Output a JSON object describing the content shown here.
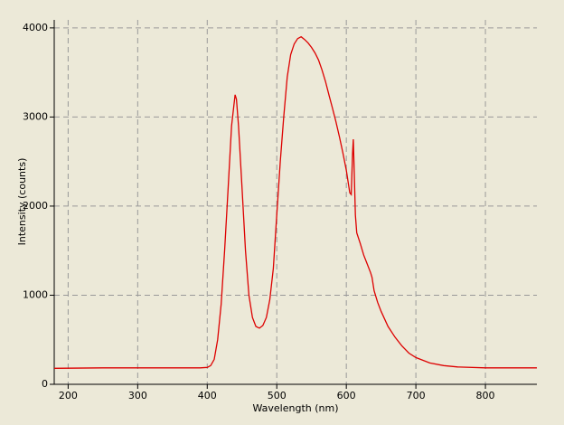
{
  "chart_data": {
    "type": "line",
    "x_label": "Wavelength (nm)",
    "y_label": "Intensity (counts)",
    "xlim": [
      180,
      874
    ],
    "ylim": [
      0,
      4090
    ],
    "xticks": [
      200,
      300,
      400,
      500,
      600,
      700,
      800
    ],
    "yticks": [
      0,
      1000,
      2000,
      3000,
      4000
    ],
    "grid": true,
    "series": [
      {
        "color": "#dd0000",
        "x": [
          180,
          250,
          300,
          350,
          390,
          400,
          405,
          410,
          415,
          420,
          425,
          430,
          435,
          440,
          442,
          445,
          450,
          455,
          460,
          465,
          470,
          475,
          480,
          485,
          490,
          495,
          500,
          505,
          510,
          515,
          520,
          525,
          530,
          535,
          540,
          545,
          550,
          555,
          560,
          565,
          570,
          575,
          580,
          585,
          590,
          595,
          600,
          605,
          607,
          609,
          610,
          611,
          613,
          615,
          620,
          625,
          630,
          635,
          637,
          640,
          645,
          650,
          660,
          670,
          680,
          690,
          700,
          720,
          740,
          760,
          800,
          874
        ],
        "values": [
          180,
          185,
          185,
          185,
          185,
          190,
          210,
          280,
          500,
          900,
          1500,
          2200,
          2900,
          3250,
          3200,
          2900,
          2200,
          1500,
          1000,
          750,
          650,
          630,
          660,
          750,
          950,
          1300,
          1900,
          2500,
          3000,
          3450,
          3700,
          3820,
          3880,
          3900,
          3870,
          3830,
          3780,
          3720,
          3640,
          3530,
          3400,
          3250,
          3100,
          2950,
          2780,
          2600,
          2400,
          2150,
          2130,
          2600,
          2750,
          2500,
          1900,
          1700,
          1580,
          1450,
          1350,
          1250,
          1200,
          1050,
          920,
          820,
          650,
          530,
          430,
          350,
          300,
          240,
          210,
          195,
          185,
          185
        ]
      }
    ]
  }
}
